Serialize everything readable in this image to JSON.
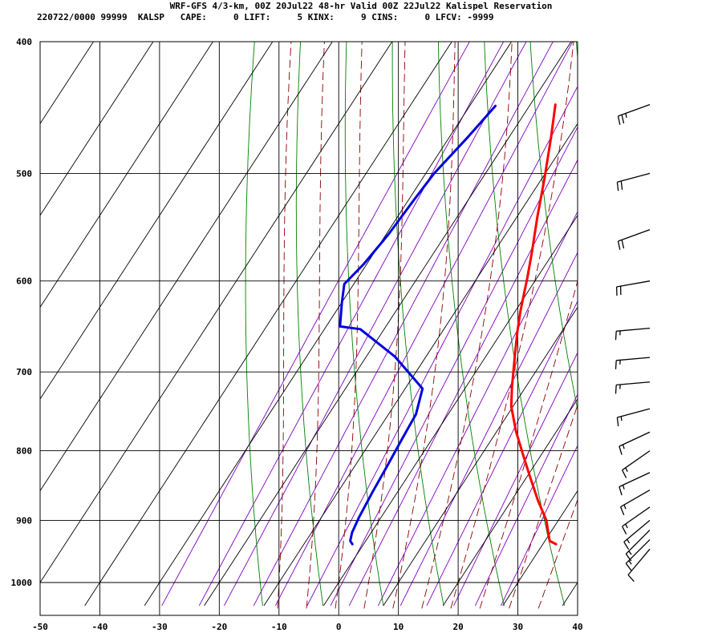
{
  "header": {
    "title": "WRF-GFS 4/3-km, 00Z 20Jul22 48-hr Valid 00Z 22Jul22 Kalispel Reservation",
    "stats_line": "220722/0000 99999  KALSP   CAPE:     0 LIFT:     5 KINX:     9 CINS:     0 LFCV: -9999"
  },
  "chart_data": {
    "type": "line",
    "subtype": "skew-T log-P sounding",
    "x_axis": {
      "range": [
        -50,
        40
      ],
      "ticks": [
        -50,
        -40,
        -30,
        -20,
        -10,
        0,
        10,
        20,
        30,
        40
      ],
      "tick_labels": [
        "-50",
        "-40",
        "-30",
        "-20",
        "-10",
        "0",
        "10",
        "20",
        "30",
        "40"
      ]
    },
    "y_axis": {
      "scale": "log",
      "range": [
        1040,
        400
      ],
      "ticks": [
        400,
        500,
        600,
        700,
        800,
        900,
        1000
      ],
      "tick_labels": [
        "400",
        "500",
        "600",
        "700",
        "800",
        "900",
        "1000"
      ]
    },
    "grid": true,
    "series": [
      {
        "role": "temperature",
        "color": "#ff0000",
        "points": [
          [
            32.2,
            937
          ],
          [
            30.8,
            932
          ],
          [
            29.3,
            915
          ],
          [
            28.0,
            900
          ],
          [
            24.4,
            870
          ],
          [
            20.4,
            835
          ],
          [
            16.9,
            805
          ],
          [
            13.2,
            774
          ],
          [
            9.7,
            742
          ],
          [
            7.7,
            718
          ],
          [
            4.7,
            680
          ],
          [
            2.6,
            654
          ],
          [
            0.9,
            632
          ],
          [
            -0.6,
            611
          ],
          [
            -1.6,
            597
          ],
          [
            -3.6,
            572
          ],
          [
            -6.6,
            538
          ],
          [
            -9.6,
            504
          ],
          [
            -13.0,
            470
          ],
          [
            -15.8,
            445
          ]
        ]
      },
      {
        "role": "dewpoint",
        "color": "#0000dd",
        "points": [
          [
            -1.9,
            937
          ],
          [
            -2.6,
            932
          ],
          [
            -3.2,
            919
          ],
          [
            -3.7,
            896
          ],
          [
            -4.2,
            858
          ],
          [
            -4.6,
            819
          ],
          [
            -5.0,
            787
          ],
          [
            -5.4,
            752
          ],
          [
            -7.1,
            720
          ],
          [
            -15.2,
            682
          ],
          [
            -24.0,
            651
          ],
          [
            -27.7,
            648
          ],
          [
            -30.0,
            622
          ],
          [
            -31.6,
            603
          ],
          [
            -30.5,
            583
          ],
          [
            -29.6,
            554
          ],
          [
            -29.1,
            523
          ],
          [
            -28.6,
            500
          ],
          [
            -26.9,
            470
          ],
          [
            -25.7,
            446
          ]
        ]
      }
    ],
    "isotherm_color": "#000000",
    "isotherm_values": [
      -100,
      -90,
      -80,
      -70,
      -60,
      -50,
      -40,
      -30,
      -20,
      -10,
      0,
      10,
      20,
      30,
      40
    ],
    "dry_adiabat_color": "#008000",
    "dry_adiabat_theta_K": [
      260,
      270,
      280,
      290,
      300,
      310,
      320,
      330,
      340,
      350,
      360,
      370
    ],
    "moist_adiabat_color": "#8b0000",
    "moist_adiabat_thetaw_C": [
      -10,
      -5,
      0,
      5,
      10,
      15,
      20,
      25,
      30,
      35
    ],
    "mixing_ratio_color": "#8000c0",
    "mixing_ratio_gkg": [
      0.4,
      0.7,
      1,
      1.5,
      2,
      3,
      4,
      5,
      7,
      9,
      12,
      16,
      20,
      26
    ],
    "wind_barbs": [
      {
        "pressure": 445,
        "dir_deg": 250,
        "speed_kt": 25
      },
      {
        "pressure": 500,
        "dir_deg": 255,
        "speed_kt": 20
      },
      {
        "pressure": 550,
        "dir_deg": 250,
        "speed_kt": 20
      },
      {
        "pressure": 600,
        "dir_deg": 260,
        "speed_kt": 20
      },
      {
        "pressure": 650,
        "dir_deg": 265,
        "speed_kt": 15
      },
      {
        "pressure": 683,
        "dir_deg": 265,
        "speed_kt": 15
      },
      {
        "pressure": 712,
        "dir_deg": 265,
        "speed_kt": 15
      },
      {
        "pressure": 745,
        "dir_deg": 255,
        "speed_kt": 15
      },
      {
        "pressure": 775,
        "dir_deg": 245,
        "speed_kt": 15
      },
      {
        "pressure": 800,
        "dir_deg": 235,
        "speed_kt": 15
      },
      {
        "pressure": 830,
        "dir_deg": 245,
        "speed_kt": 15
      },
      {
        "pressure": 855,
        "dir_deg": 240,
        "speed_kt": 15
      },
      {
        "pressure": 880,
        "dir_deg": 235,
        "speed_kt": 15
      },
      {
        "pressure": 900,
        "dir_deg": 230,
        "speed_kt": 15
      },
      {
        "pressure": 915,
        "dir_deg": 225,
        "speed_kt": 15
      },
      {
        "pressure": 930,
        "dir_deg": 225,
        "speed_kt": 15
      },
      {
        "pressure": 945,
        "dir_deg": 220,
        "speed_kt": 10
      }
    ]
  }
}
